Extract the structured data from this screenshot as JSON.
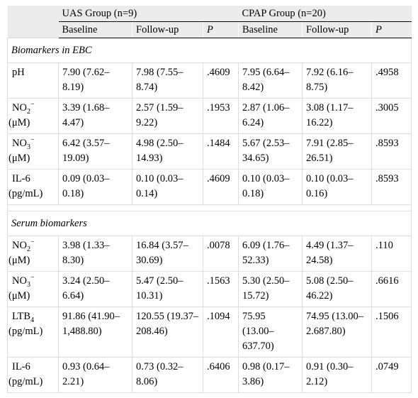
{
  "header": {
    "group_uas": "UAS Group (n=9)",
    "group_cpap": "CPAP Group (n=20)",
    "baseline": "Baseline",
    "followup": "Follow-up",
    "p": "P"
  },
  "sections": [
    {
      "title": "Biomarkers in EBC",
      "rows": [
        {
          "label": "pH",
          "unit": "",
          "chem": "",
          "sub": "",
          "sup": "",
          "uas_base": "7.90 (7.62–8.19)",
          "uas_follow": "7.98 (7.55–8.74)",
          "uas_p": ".4609",
          "cpap_base": "7.95 (6.64–8.42)",
          "cpap_follow": "7.92 (6.16–8.75)",
          "cpap_p": ".4958"
        },
        {
          "label": "",
          "chem": "NO",
          "sub": "2",
          "sup": "−",
          "unit": "(μM)",
          "uas_base": "3.39 (1.68–4.47)",
          "uas_follow": "2.57 (1.59–9.22)",
          "uas_p": ".1953",
          "cpap_base": "2.87 (1.06–6.24)",
          "cpap_follow": "3.08 (1.17–16.22)",
          "cpap_p": ".3005"
        },
        {
          "label": "",
          "chem": "NO",
          "sub": "3",
          "sup": "−",
          "unit": "(μM)",
          "uas_base": "6.42 (3.57–19.09)",
          "uas_follow": "4.98 (2.50–14.93)",
          "uas_p": ".1484",
          "cpap_base": "5.67 (2.53–34.65)",
          "cpap_follow": "7.91 (2.85–26.51)",
          "cpap_p": ".8593"
        },
        {
          "label": "IL-6",
          "chem": "",
          "sub": "",
          "sup": "",
          "unit": "(pg/mL)",
          "uas_base": "0.09 (0.03–0.18)",
          "uas_follow": "0.10 (0.03–0.14)",
          "uas_p": ".4609",
          "cpap_base": "0.10 (0.03–0.18)",
          "cpap_follow": "0.10 (0.03–0.16)",
          "cpap_p": ".8593"
        }
      ]
    },
    {
      "title": "Serum biomarkers",
      "rows": [
        {
          "label": "",
          "chem": "NO",
          "sub": "2",
          "sup": "−",
          "unit": "(μM)",
          "uas_base": "3.98 (1.33–8.30)",
          "uas_follow": "16.84 (3.57–30.69)",
          "uas_p": ".0078",
          "cpap_base": "6.09 (1.76–52.33)",
          "cpap_follow": "4.49 (1.37–24.58)",
          "cpap_p": ".110"
        },
        {
          "label": "",
          "chem": "NO",
          "sub": "3",
          "sup": "−",
          "unit": "(μM)",
          "uas_base": "3.24 (2.50–6.64)",
          "uas_follow": "5.47 (2.50–10.31)",
          "uas_p": ".1563",
          "cpap_base": "5.30 (2.50–15.72)",
          "cpap_follow": "5.08 (2.50–46.22)",
          "cpap_p": ".6616"
        },
        {
          "label": "",
          "chem": "LTB",
          "sub": "4",
          "sup": "",
          "unit": "(pg/mL)",
          "uas_base": "91.86 (41.90–1,488.80)",
          "uas_follow": "120.55 (19.37–208.46)",
          "uas_p": ".1094",
          "cpap_base": "75.95 (13.00–637.70)",
          "cpap_follow": "74.95 (13.00–2.687.80)",
          "cpap_p": ".1506"
        },
        {
          "label": "IL-6",
          "chem": "",
          "sub": "",
          "sup": "",
          "unit": "(pg/mL)",
          "uas_base": "0.93 (0.64–2.21)",
          "uas_follow": "0.73 (0.32–8.06)",
          "uas_p": ".6406",
          "cpap_base": "0.98 (0.17–3.86)",
          "cpap_follow": "0.91 (0.30–2.12)",
          "cpap_p": ".0749"
        }
      ]
    }
  ]
}
